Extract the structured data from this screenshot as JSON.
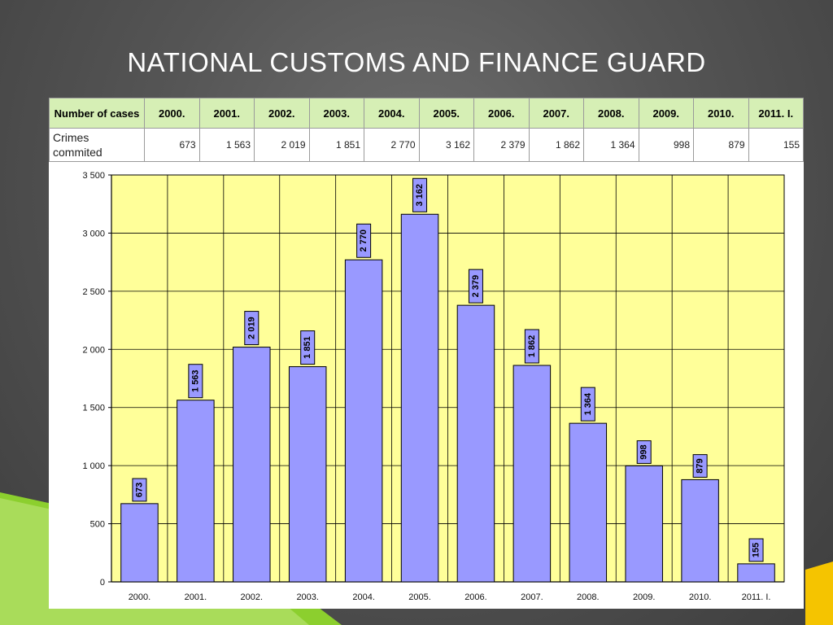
{
  "slide": {
    "title": "NATIONAL CUSTOMS AND FINANCE GUARD"
  },
  "colors": {
    "plot_background": "#ffff99",
    "bar_fill": "#9999ff",
    "table_header": "#d6efb5",
    "accent_green": "#8ccf2e",
    "accent_yellow": "#f5c400"
  },
  "table": {
    "header_label": "Number of cases",
    "row_label": "Crimes commited",
    "columns": [
      "2000.",
      "2001.",
      "2002.",
      "2003.",
      "2004.",
      "2005.",
      "2006.",
      "2007.",
      "2008.",
      "2009.",
      "2010.",
      "2011. I."
    ],
    "values": [
      "673",
      "1 563",
      "2 019",
      "1 851",
      "2 770",
      "3 162",
      "2 379",
      "1 862",
      "1 364",
      "998",
      "879",
      "155"
    ]
  },
  "chart_data": {
    "type": "bar",
    "categories": [
      "2000.",
      "2001.",
      "2002.",
      "2003.",
      "2004.",
      "2005.",
      "2006.",
      "2007.",
      "2008.",
      "2009.",
      "2010.",
      "2011. I."
    ],
    "values": [
      673,
      1563,
      2019,
      1851,
      2770,
      3162,
      2379,
      1862,
      1364,
      998,
      879,
      155
    ],
    "value_labels": [
      "673",
      "1 563",
      "2 019",
      "1 851",
      "2 770",
      "3 162",
      "2 379",
      "1 862",
      "1 364",
      "998",
      "879",
      "155"
    ],
    "ylim": [
      0,
      3500
    ],
    "yticks": [
      0,
      500,
      1000,
      1500,
      2000,
      2500,
      3000,
      3500
    ],
    "ytick_labels": [
      "0",
      "500",
      "1 000",
      "1 500",
      "2 000",
      "2 500",
      "3 000",
      "3 500"
    ],
    "grid": true,
    "title": "",
    "xlabel": "",
    "ylabel": ""
  }
}
